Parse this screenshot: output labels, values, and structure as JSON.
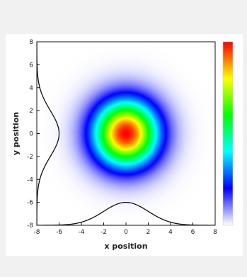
{
  "chart_data": {
    "type": "heatmap",
    "title": "",
    "xlabel": "x position",
    "ylabel": "y position",
    "xlim": [
      -8,
      8
    ],
    "ylim": [
      -8,
      8
    ],
    "x_ticks": [
      -8,
      -6,
      -4,
      -2,
      0,
      2,
      4,
      6,
      8
    ],
    "y_ticks": [
      -8,
      -6,
      -4,
      -2,
      0,
      2,
      4,
      6,
      8
    ],
    "distribution": {
      "shape": "2D gaussian",
      "center_x": 0,
      "center_y": 0,
      "sigma_x": 2,
      "sigma_y": 2
    },
    "colormap": [
      "#ffffff",
      "#0000ff",
      "#00ffff",
      "#00ff00",
      "#ffff00",
      "#ff0000"
    ],
    "x_profile": {
      "description": "gaussian profile along x",
      "baseline_y": -8,
      "peak_y": -6,
      "center_x": 0,
      "sigma_x": 2
    },
    "y_profile": {
      "description": "gaussian profile along y",
      "baseline_x": -8,
      "peak_x": -6,
      "center_y": 0,
      "sigma_y": 2
    },
    "grid": false,
    "colorbar": "right"
  }
}
